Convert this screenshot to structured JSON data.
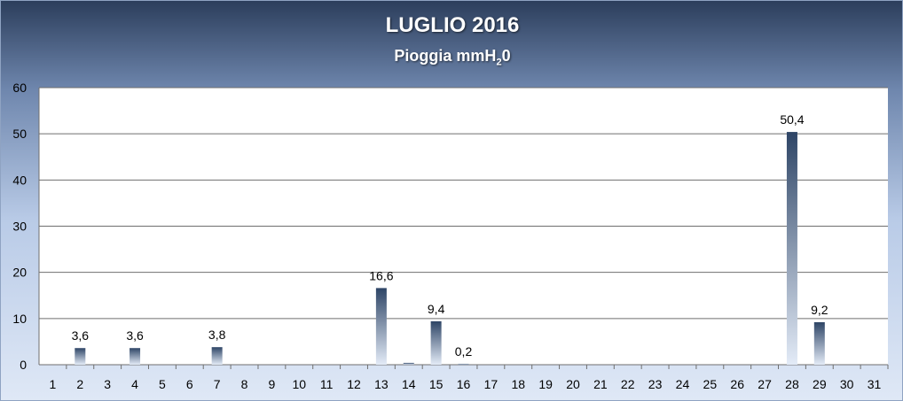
{
  "chart_data": {
    "type": "bar",
    "title": "LUGLIO 2016",
    "subtitle_main": "Pioggia mmH",
    "subtitle_sub": "2",
    "subtitle_end": "0",
    "xlabel": "",
    "ylabel": "",
    "ylim": [
      0,
      60
    ],
    "yticks": [
      "0",
      "10",
      "20",
      "30",
      "40",
      "50",
      "60"
    ],
    "grid": true,
    "categories": [
      "1",
      "2",
      "3",
      "4",
      "5",
      "6",
      "7",
      "8",
      "9",
      "10",
      "11",
      "12",
      "13",
      "14",
      "15",
      "16",
      "17",
      "18",
      "19",
      "20",
      "21",
      "22",
      "23",
      "24",
      "25",
      "26",
      "27",
      "28",
      "29",
      "30",
      "31"
    ],
    "values": [
      0,
      3.6,
      0,
      3.6,
      0,
      0,
      3.8,
      0,
      0,
      0,
      0,
      0,
      16.6,
      0.4,
      9.4,
      0.2,
      0,
      0,
      0,
      0,
      0,
      0,
      0,
      0,
      0,
      0,
      0,
      50.4,
      9.2,
      0,
      0
    ],
    "data_labels": [
      "",
      "3,6",
      "",
      "3,6",
      "",
      "",
      "3,8",
      "",
      "",
      "",
      "",
      "",
      "16,6",
      "",
      "9,4",
      "0,2",
      "",
      "",
      "",
      "",
      "",
      "",
      "",
      "",
      "",
      "",
      "",
      "50,4",
      "9,2",
      "",
      ""
    ],
    "colors": {
      "bar_dark": "#2e4566",
      "bar_light": "#e3ebf7",
      "plot_bg": "#ffffff",
      "grid": "#6f6f6f",
      "text": "#000000"
    }
  }
}
